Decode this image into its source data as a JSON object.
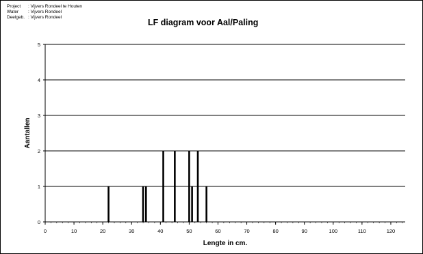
{
  "header": {
    "meta": [
      {
        "key": "Project",
        "value": ": Vijvers Rondeel te Houten"
      },
      {
        "key": "Water",
        "value": ": Vijvers Rondeel"
      },
      {
        "key": "Deelgeb.",
        "value": ": Vijvers Rondeel"
      }
    ]
  },
  "chart_data": {
    "type": "bar",
    "title": "LF diagram voor Aal/Paling",
    "xlabel": "Lengte in cm.",
    "ylabel": "Aantallen",
    "xlim": [
      0,
      125
    ],
    "ylim": [
      0,
      5
    ],
    "xticks": [
      0,
      10,
      20,
      30,
      40,
      50,
      60,
      70,
      80,
      90,
      100,
      110,
      120
    ],
    "yticks": [
      0,
      1,
      2,
      3,
      4,
      5
    ],
    "grid": "horizontal",
    "x": [
      22,
      34,
      35,
      41,
      45,
      50,
      51,
      53,
      56
    ],
    "values": [
      1,
      1,
      1,
      2,
      2,
      2,
      1,
      2,
      1
    ]
  }
}
